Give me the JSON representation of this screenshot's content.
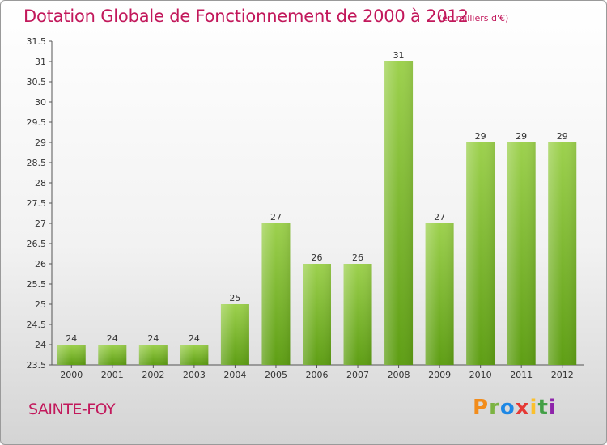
{
  "chart_data": {
    "type": "bar",
    "title": "Dotation Globale de Fonctionnement de 2000 à 2012",
    "subtitle": "(en milliers d'€)",
    "categories": [
      "2000",
      "2001",
      "2002",
      "2003",
      "2004",
      "2005",
      "2006",
      "2007",
      "2008",
      "2009",
      "2010",
      "2011",
      "2012"
    ],
    "values": [
      24,
      24,
      24,
      24,
      25,
      27,
      26,
      26,
      31,
      27,
      29,
      29,
      29
    ],
    "ylim": [
      23.5,
      31.5
    ],
    "yticks": [
      "23.5",
      "24",
      "24.5",
      "25",
      "25.5",
      "26",
      "26.5",
      "27",
      "27.5",
      "28",
      "28.5",
      "29",
      "29.5",
      "30",
      "30.5",
      "31",
      "31.5"
    ],
    "grid": false,
    "bar_color_top": "#9dd14e",
    "bar_color_bottom": "#5e9e14",
    "xlabel": "",
    "ylabel": ""
  },
  "footer": {
    "location": "SAINTE-FOY",
    "logo_parts": [
      "P",
      "r",
      "o",
      "x",
      "i",
      "t",
      "i"
    ]
  },
  "colors": {
    "title": "#c2185b",
    "axis": "#555555"
  }
}
